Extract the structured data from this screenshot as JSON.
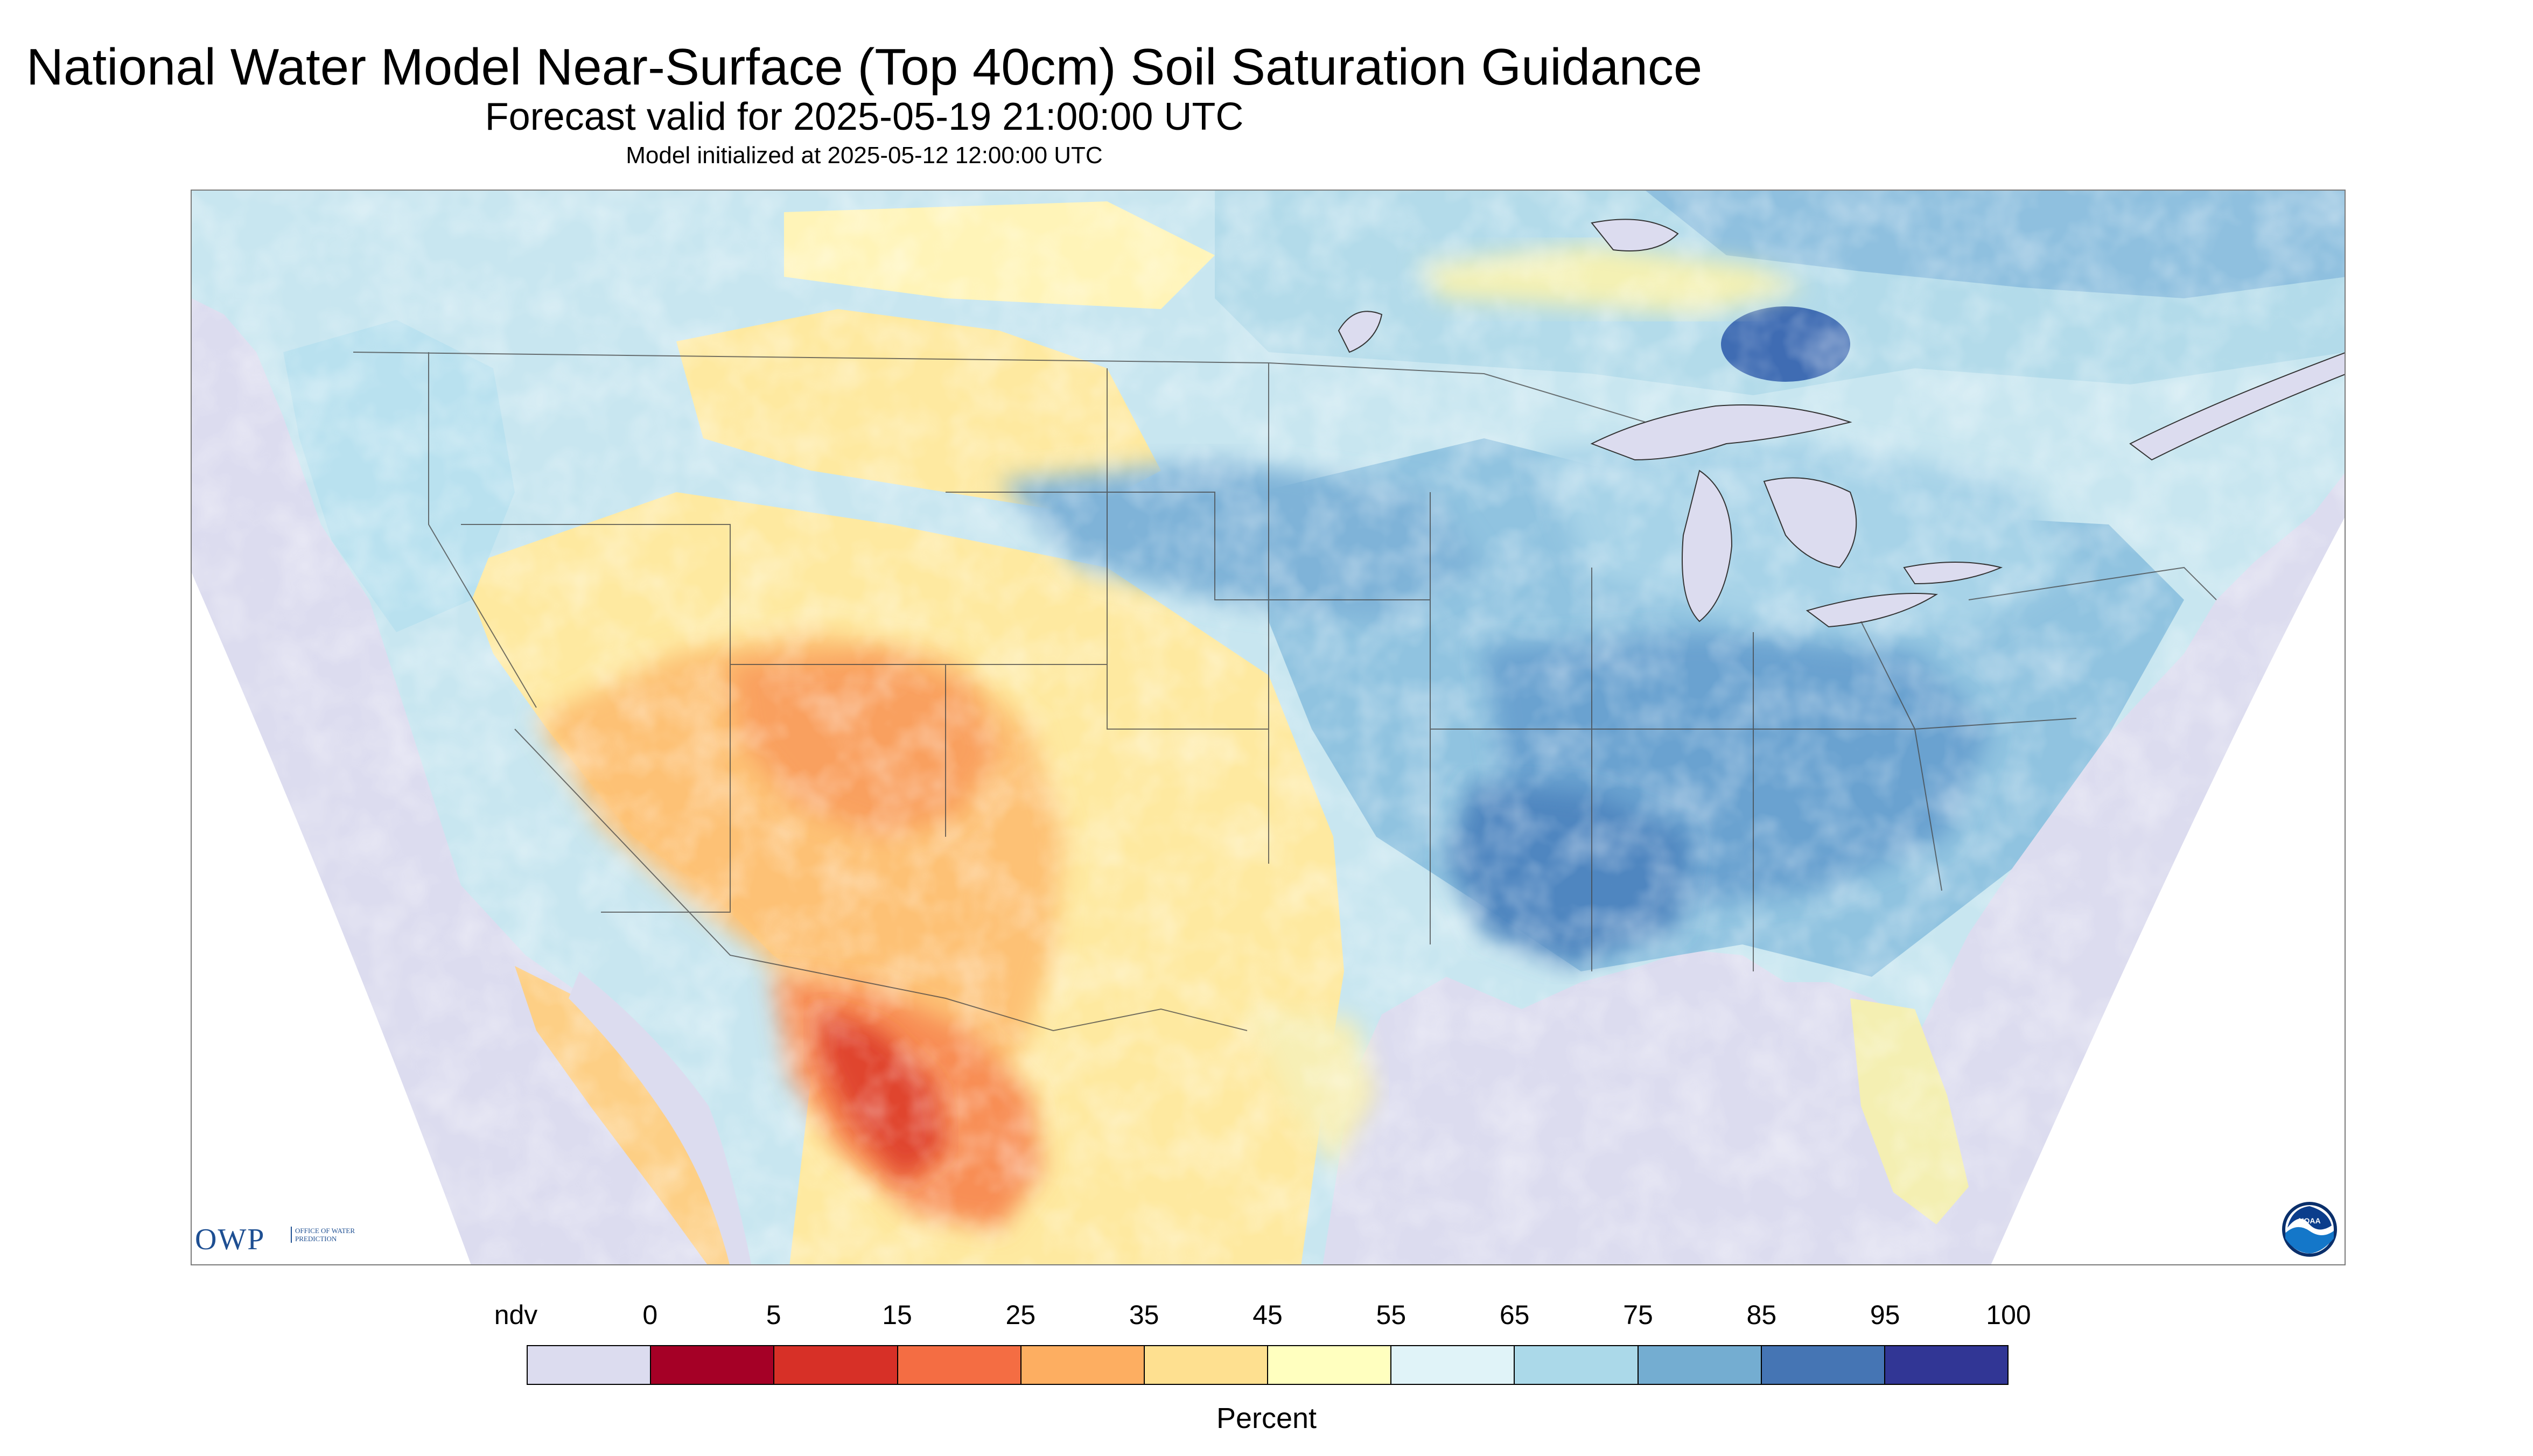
{
  "title": "National Water Model Near-Surface (Top 40cm) Soil Saturation Guidance",
  "subtitle": "Forecast valid for 2025-05-19 21:00:00 UTC",
  "init_line": "Model initialized at 2025-05-12 12:00:00 UTC",
  "logos": {
    "owp_main": "OWP",
    "owp_sub": "OFFICE OF WATER PREDICTION",
    "noaa": "NOAA"
  },
  "legend": {
    "units": "Percent",
    "labels": [
      "ndv",
      "0",
      "5",
      "15",
      "25",
      "35",
      "45",
      "55",
      "65",
      "75",
      "85",
      "95",
      "100"
    ],
    "colors": [
      "#dcdcef",
      "#a50026",
      "#d73027",
      "#f46d43",
      "#fdae61",
      "#fee090",
      "#ffffbf",
      "#e0f3f8",
      "#abd9e9",
      "#74add1",
      "#4575b4",
      "#313695"
    ]
  },
  "map": {
    "background_no_data": "#dcdcef",
    "region": "Contiguous United States with southern Canada and northern Mexico"
  }
}
